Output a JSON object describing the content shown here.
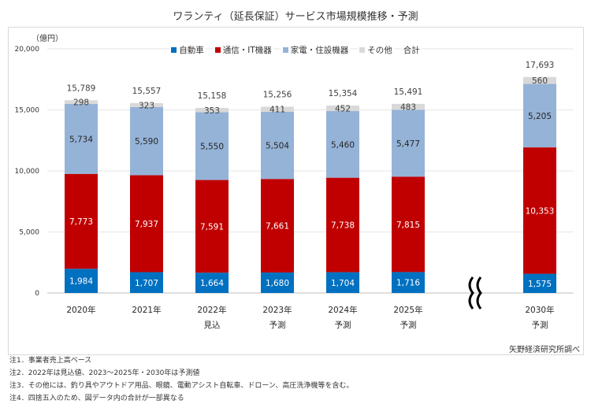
{
  "chart_data": {
    "type": "stacked-bar",
    "title": "ワランティ（延長保証）サービス市場規模推移・予測",
    "ylabel": "（億円）",
    "ylim": [
      0,
      20000
    ],
    "yticks": [
      "0",
      "5,000",
      "10,000",
      "15,000",
      "20,000"
    ],
    "grid": true,
    "legend_position": "top",
    "categories": [
      "2020年",
      "2021年",
      "2022年",
      "2023年",
      "2024年",
      "2025年",
      "2030年"
    ],
    "category_sublabels": [
      "",
      "",
      "見込",
      "予測",
      "予測",
      "予測",
      "予測"
    ],
    "axis_break_between": [
      "2025年",
      "2030年"
    ],
    "series": [
      {
        "name": "自動車",
        "color": "#0070c0",
        "values": [
          1984,
          1707,
          1664,
          1680,
          1704,
          1716,
          1575
        ]
      },
      {
        "name": "通信・IT機器",
        "color": "#c00000",
        "values": [
          7773,
          7937,
          7591,
          7661,
          7738,
          7815,
          10353
        ]
      },
      {
        "name": "家電・住設機器",
        "color": "#95b3d7",
        "values": [
          5734,
          5590,
          5550,
          5504,
          5460,
          5477,
          5205
        ]
      },
      {
        "name": "その他",
        "color": "#d9d9d9",
        "values": [
          298,
          323,
          353,
          411,
          452,
          483,
          560
        ]
      }
    ],
    "totals_label": "合計",
    "totals": [
      15789,
      15557,
      15158,
      15256,
      15354,
      15491,
      17693
    ]
  },
  "source": "矢野経済研究所調べ",
  "notes": [
    "注1．事業者売上高ベース",
    "注2．2022年は見込値、2023～2025年・2030年は予測値",
    "注3．その他には、釣り具やアウトドア用品、眼鏡、電動アシスト自転車、ドローン、高圧洗浄機等を含む。",
    "注4．四捨五入のため、図データ内の合計が一部異なる"
  ]
}
